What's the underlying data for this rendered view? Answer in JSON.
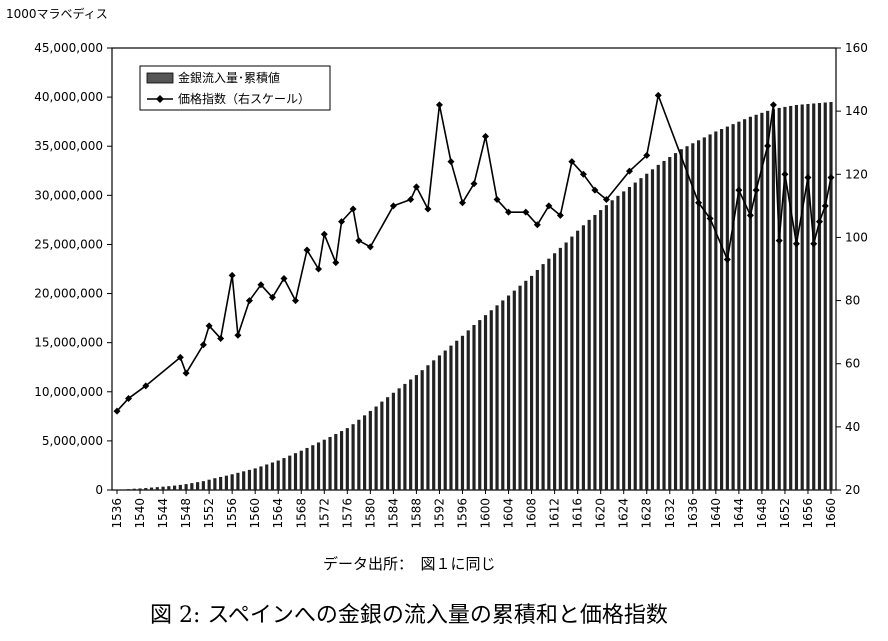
{
  "chart_data": {
    "type": "bar",
    "title": "",
    "unit_label": "1000マラベディス",
    "source_note": "データ出所：　図１に同じ",
    "caption": "図 2: スペインへの金銀の流入量の累積和と価格指数",
    "legend_position": "top-left",
    "left_axis": {
      "min": 0,
      "max": 45000000,
      "ticks": [
        "0",
        "5,000,000",
        "10,000,000",
        "15,000,000",
        "20,000,000",
        "25,000,000",
        "30,000,000",
        "35,000,000",
        "40,000,000",
        "45,000,000"
      ]
    },
    "right_axis": {
      "min": 20,
      "max": 160,
      "ticks": [
        "20",
        "40",
        "60",
        "80",
        "100",
        "120",
        "140",
        "160"
      ]
    },
    "x_axis": {
      "min": 1536,
      "max": 1660,
      "ticks": [
        "1536",
        "1540",
        "1544",
        "1548",
        "1552",
        "1556",
        "1560",
        "1564",
        "1568",
        "1572",
        "1576",
        "1580",
        "1584",
        "1588",
        "1592",
        "1596",
        "1600",
        "1604",
        "1608",
        "1612",
        "1616",
        "1620",
        "1624",
        "1628",
        "1632",
        "1636",
        "1640",
        "1644",
        "1648",
        "1652",
        "1656",
        "1660"
      ]
    },
    "series": [
      {
        "name": "金銀流入量･累積値",
        "kind": "bar",
        "axis": "left",
        "x": [
          1536,
          1537,
          1538,
          1539,
          1540,
          1541,
          1542,
          1543,
          1544,
          1545,
          1546,
          1547,
          1548,
          1549,
          1550,
          1551,
          1552,
          1553,
          1554,
          1555,
          1556,
          1557,
          1558,
          1559,
          1560,
          1561,
          1562,
          1563,
          1564,
          1565,
          1566,
          1567,
          1568,
          1569,
          1570,
          1571,
          1572,
          1573,
          1574,
          1575,
          1576,
          1577,
          1578,
          1579,
          1580,
          1581,
          1582,
          1583,
          1584,
          1585,
          1586,
          1587,
          1588,
          1589,
          1590,
          1591,
          1592,
          1593,
          1594,
          1595,
          1596,
          1597,
          1598,
          1599,
          1600,
          1601,
          1602,
          1603,
          1604,
          1605,
          1606,
          1607,
          1608,
          1609,
          1610,
          1611,
          1612,
          1613,
          1614,
          1615,
          1616,
          1617,
          1618,
          1619,
          1620,
          1621,
          1622,
          1623,
          1624,
          1625,
          1626,
          1627,
          1628,
          1629,
          1630,
          1631,
          1632,
          1633,
          1634,
          1635,
          1636,
          1637,
          1638,
          1639,
          1640,
          1641,
          1642,
          1643,
          1644,
          1645,
          1646,
          1647,
          1648,
          1649,
          1650,
          1651,
          1652,
          1653,
          1654,
          1655,
          1656,
          1657,
          1658,
          1659,
          1660
        ],
        "values": [
          30000,
          60000,
          90000,
          130000,
          160000,
          200000,
          250000,
          290000,
          340000,
          390000,
          450000,
          520000,
          600000,
          700000,
          800000,
          900000,
          1050000,
          1200000,
          1330000,
          1460000,
          1600000,
          1750000,
          1900000,
          2050000,
          2200000,
          2400000,
          2600000,
          2800000,
          3000000,
          3250000,
          3500000,
          3750000,
          4000000,
          4280000,
          4560000,
          4840000,
          5120000,
          5400000,
          5700000,
          6000000,
          6300000,
          6700000,
          7150000,
          7600000,
          8050000,
          8500000,
          9000000,
          9450000,
          9900000,
          10350000,
          10800000,
          11250000,
          11700000,
          12200000,
          12700000,
          13200000,
          13700000,
          14200000,
          14700000,
          15200000,
          15700000,
          16250000,
          16800000,
          17300000,
          17800000,
          18300000,
          18800000,
          19300000,
          19800000,
          20300000,
          20800000,
          21300000,
          21800000,
          22400000,
          23000000,
          23550000,
          24100000,
          24650000,
          25200000,
          25800000,
          26400000,
          26950000,
          27500000,
          28000000,
          28500000,
          29000000,
          29500000,
          29950000,
          30400000,
          30850000,
          31300000,
          31750000,
          32200000,
          32650000,
          33100000,
          33500000,
          33900000,
          34300000,
          34700000,
          35000000,
          35300000,
          35600000,
          35900000,
          36200000,
          36500000,
          36750000,
          37000000,
          37250000,
          37500000,
          37750000,
          38000000,
          38200000,
          38400000,
          38600000,
          38750000,
          38900000,
          39000000,
          39100000,
          39200000,
          39250000,
          39300000,
          39350000,
          39400000,
          39450000,
          39500000
        ]
      },
      {
        "name": "価格指数（右スケール）",
        "kind": "line",
        "axis": "right",
        "x": [
          1536,
          1538,
          1541,
          1547,
          1548,
          1551,
          1552,
          1554,
          1556,
          1557,
          1559,
          1561,
          1563,
          1565,
          1567,
          1569,
          1571,
          1572,
          1574,
          1575,
          1577,
          1578,
          1580,
          1584,
          1587,
          1588,
          1590,
          1592,
          1594,
          1596,
          1598,
          1600,
          1602,
          1604,
          1607,
          1609,
          1611,
          1613,
          1615,
          1617,
          1619,
          1621,
          1625,
          1628,
          1630,
          1637,
          1639,
          1642,
          1644,
          1646,
          1647,
          1649,
          1650,
          1651,
          1652,
          1654,
          1656,
          1657,
          1658,
          1659,
          1660
        ],
        "values": [
          45,
          49,
          53,
          62,
          57,
          66,
          72,
          68,
          88,
          69,
          80,
          85,
          81,
          87,
          80,
          96,
          90,
          101,
          92,
          105,
          109,
          99,
          97,
          110,
          112,
          116,
          109,
          142,
          124,
          111,
          117,
          132,
          112,
          108,
          108,
          104,
          110,
          107,
          124,
          120,
          115,
          112,
          121,
          126,
          145,
          111,
          106,
          93,
          115,
          107,
          115,
          129,
          142,
          99,
          120,
          98,
          119,
          98,
          105,
          110,
          119
        ]
      }
    ]
  }
}
